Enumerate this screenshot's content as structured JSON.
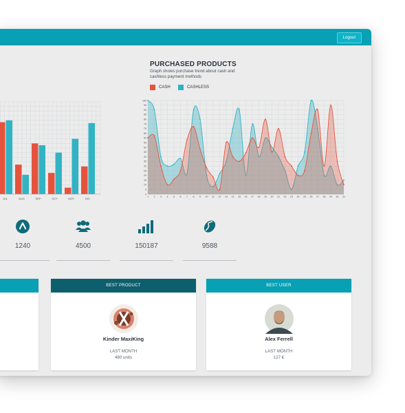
{
  "header": {
    "logout_label": "Logout"
  },
  "purchased": {
    "title": "PURCHASED PRODUCTS",
    "subtitle": "Graph shows purchase trend about cash and cashless payment methods",
    "legend": {
      "cash": "CASH",
      "cashless": "CASHLESS"
    }
  },
  "colors": {
    "cash": "#e5533d",
    "cashless": "#31b3c4",
    "header": "#07a0b5",
    "dark_header": "#0d5f6d",
    "icon": "#0d6b7a"
  },
  "stats": [
    {
      "icon": "chevron-up-icon",
      "value": "1240"
    },
    {
      "icon": "users-icon",
      "value": "4500"
    },
    {
      "icon": "bar-chart-icon",
      "value": "150187"
    },
    {
      "icon": "coffee-bean-icon",
      "value": "9588"
    }
  ],
  "cards": {
    "best_product": {
      "header": "BEST PRODUCT",
      "name": "Kinder MaxiKing",
      "period": "LAST MONTH",
      "amount": "480 units"
    },
    "best_user": {
      "header": "BEST USER",
      "name": "Alex Ferrell",
      "period": "LAST MONTH",
      "amount": "127 €"
    }
  },
  "chart_data": [
    {
      "type": "bar",
      "categories": [
        "JUL",
        "AUG",
        "SEP",
        "OCT",
        "NOV",
        "DIC"
      ],
      "series": [
        {
          "values": [
            78,
            32,
            55,
            23,
            7,
            30
          ]
        },
        {
          "values": [
            80,
            21,
            53,
            45,
            60,
            77
          ]
        }
      ],
      "ylim": [
        0,
        100
      ],
      "grid": true
    },
    {
      "type": "area",
      "title": "PURCHASED PRODUCTS",
      "x": [
        1,
        2,
        3,
        4,
        5,
        6,
        7,
        8,
        9,
        10,
        11,
        12,
        13,
        14,
        15,
        16,
        17,
        18,
        19,
        20,
        21,
        22,
        23,
        24,
        25,
        26,
        27,
        28,
        29,
        30,
        31
      ],
      "series": [
        {
          "name": "CASH",
          "values": [
            60,
            62,
            30,
            10,
            16,
            25,
            58,
            72,
            48,
            28,
            18,
            5,
            55,
            40,
            35,
            44,
            60,
            50,
            80,
            45,
            70,
            40,
            30,
            20,
            25,
            65,
            90,
            30,
            95,
            35,
            10
          ]
        },
        {
          "name": "CASHLESS",
          "values": [
            100,
            90,
            40,
            30,
            32,
            38,
            22,
            90,
            80,
            20,
            8,
            22,
            35,
            70,
            90,
            20,
            75,
            40,
            60,
            50,
            40,
            25,
            5,
            30,
            45,
            100,
            70,
            20,
            30,
            10,
            15
          ]
        }
      ],
      "ylim": [
        0,
        100
      ],
      "yticks": [
        0,
        5,
        10,
        15,
        20,
        25,
        30,
        35,
        40,
        45,
        50,
        55,
        60,
        65,
        70,
        75,
        80,
        85,
        90,
        95,
        100
      ],
      "grid": true,
      "legend": "top-left"
    }
  ]
}
